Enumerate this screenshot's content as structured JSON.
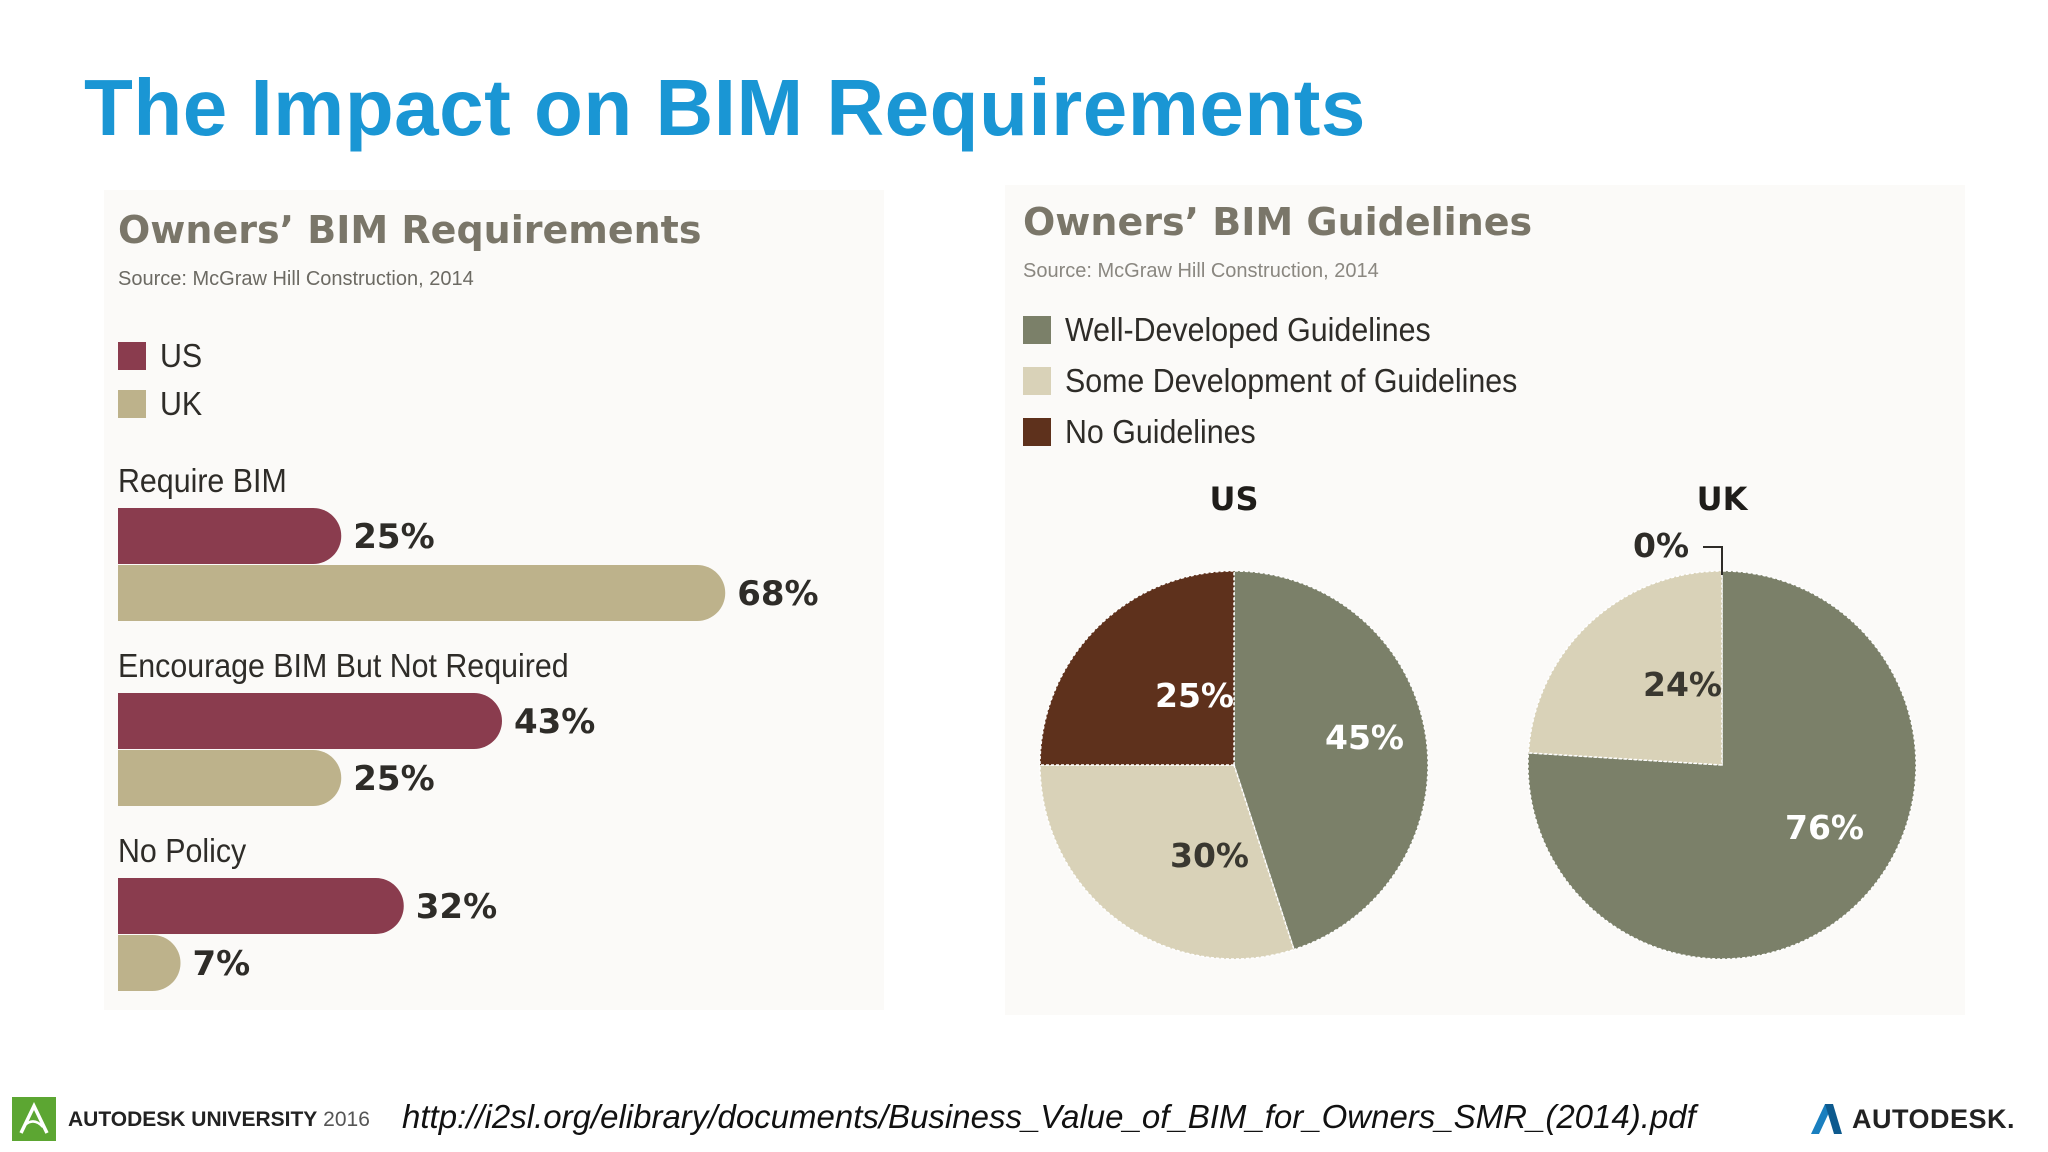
{
  "slide": {
    "title": "The Impact on BIM Requirements",
    "url": "http://i2sl.org/elibrary/documents/Business_Value_of_BIM_for_Owners_SMR_(2014).pdf",
    "footer_left": "AUTODESK UNIVERSITY 2016",
    "footer_left_bold": "AUTODESK UNIVERSITY",
    "footer_left_year": "2016",
    "footer_right": "AUTODESK."
  },
  "colors": {
    "title_blue": "#1a96d4",
    "us_bar": "#8a3c4e",
    "uk_bar": "#bdb28b",
    "well_developed": "#7b8069",
    "some_development": "#d9d2b8",
    "no_guidelines": "#5e311c",
    "au_logo_green": "#5ca632"
  },
  "chart_data": [
    {
      "type": "bar",
      "orientation": "horizontal",
      "title": "Owners’ BIM Requirements",
      "source": "Source: McGraw Hill Construction, 2014",
      "legend": [
        "US",
        "UK"
      ],
      "categories": [
        "Require BIM",
        "Encourage BIM But Not Required",
        "No Policy"
      ],
      "series": [
        {
          "name": "US",
          "values": [
            25,
            43,
            32
          ],
          "color": "#8a3c4e"
        },
        {
          "name": "UK",
          "values": [
            68,
            25,
            7
          ],
          "color": "#bdb28b"
        }
      ],
      "value_labels": {
        "US": [
          "25%",
          "43%",
          "32%"
        ],
        "UK": [
          "68%",
          "25%",
          "7%"
        ]
      },
      "xlim": [
        0,
        100
      ],
      "grid": false
    },
    {
      "type": "pie",
      "title": "Owners’ BIM Guidelines",
      "source": "Source: McGraw Hill Construction, 2014",
      "legend": [
        "Well-Developed Guidelines",
        "Some Development of Guidelines",
        "No Guidelines"
      ],
      "pies": [
        {
          "name": "US",
          "slices": [
            {
              "label": "Well-Developed Guidelines",
              "value": 45,
              "text": "45%"
            },
            {
              "label": "Some Development of Guidelines",
              "value": 30,
              "text": "30%"
            },
            {
              "label": "No Guidelines",
              "value": 25,
              "text": "25%"
            }
          ]
        },
        {
          "name": "UK",
          "slices": [
            {
              "label": "Well-Developed Guidelines",
              "value": 76,
              "text": "76%"
            },
            {
              "label": "Some Development of Guidelines",
              "value": 24,
              "text": "24%"
            },
            {
              "label": "No Guidelines",
              "value": 0,
              "text": "0%"
            }
          ]
        }
      ]
    }
  ]
}
